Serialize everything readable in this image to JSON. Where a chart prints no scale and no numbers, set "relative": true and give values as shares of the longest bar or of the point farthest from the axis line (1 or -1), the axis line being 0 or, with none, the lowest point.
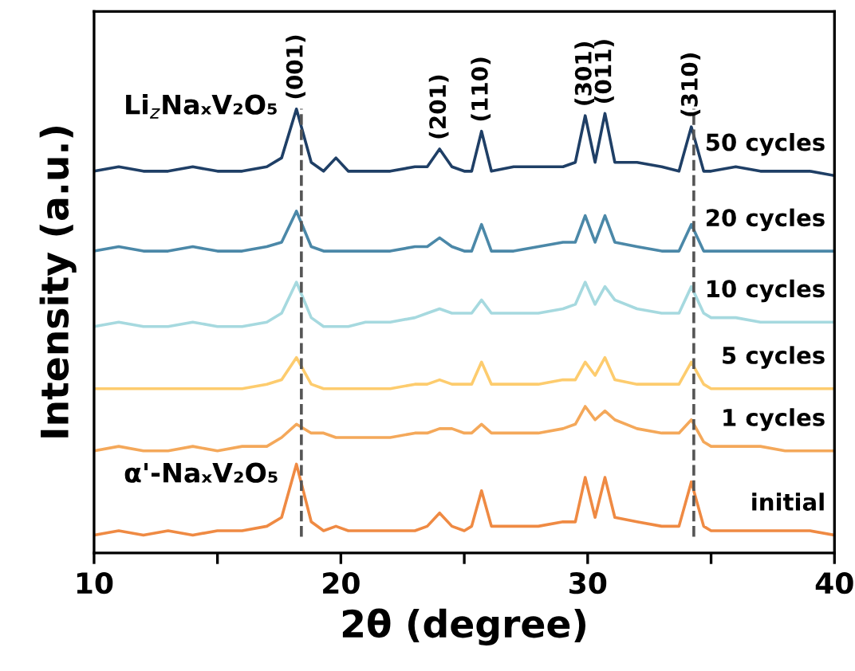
{
  "chart_data": {
    "type": "line",
    "relative": true,
    "xlabel": "2θ (degree)",
    "ylabel": "Intensity (a.u.)",
    "x": [
      10,
      11,
      12,
      13,
      14,
      15,
      16,
      17,
      17.6,
      18.2,
      18.8,
      19.3,
      19.8,
      20.3,
      21,
      22,
      23,
      23.5,
      24,
      24.5,
      25,
      25.3,
      25.7,
      26.1,
      27,
      28,
      29,
      29.5,
      29.9,
      30.3,
      30.7,
      31.1,
      32,
      33,
      33.7,
      34.2,
      34.7,
      35,
      36,
      37,
      38,
      39,
      40
    ],
    "xlim": [
      10,
      40
    ],
    "xticks": [
      10,
      {
        "value": 15,
        "label": null
      },
      20,
      {
        "value": 25,
        "label": null
      },
      30,
      {
        "value": 35,
        "label": null
      },
      40
    ],
    "tick_labels": "x",
    "grid": false,
    "legend": false,
    "line_style": "solid",
    "marker": "none",
    "series": [
      {
        "name": "50 cycles",
        "color": "#1f3f66",
        "values": [
          0.86,
          0.87,
          0.86,
          0.86,
          0.87,
          0.86,
          0.86,
          0.87,
          0.89,
          1.0,
          0.88,
          0.86,
          0.89,
          0.86,
          0.86,
          0.86,
          0.87,
          0.87,
          0.91,
          0.87,
          0.86,
          0.86,
          0.95,
          0.86,
          0.87,
          0.87,
          0.87,
          0.88,
          0.985,
          0.88,
          0.99,
          0.88,
          0.88,
          0.87,
          0.86,
          0.96,
          0.86,
          0.86,
          0.87,
          0.86,
          0.86,
          0.86,
          0.85
        ]
      },
      {
        "name": "20 cycles",
        "color": "#4b88a8",
        "values": [
          0.68,
          0.69,
          0.68,
          0.68,
          0.69,
          0.68,
          0.68,
          0.69,
          0.7,
          0.77,
          0.69,
          0.68,
          0.68,
          0.68,
          0.68,
          0.68,
          0.69,
          0.69,
          0.71,
          0.69,
          0.68,
          0.68,
          0.74,
          0.68,
          0.68,
          0.69,
          0.7,
          0.7,
          0.76,
          0.7,
          0.76,
          0.7,
          0.69,
          0.68,
          0.68,
          0.74,
          0.68,
          0.68,
          0.68,
          0.68,
          0.68,
          0.68,
          0.68
        ]
      },
      {
        "name": "10 cycles",
        "color": "#a6d9df",
        "values": [
          0.51,
          0.52,
          0.51,
          0.51,
          0.52,
          0.51,
          0.51,
          0.52,
          0.54,
          0.61,
          0.53,
          0.51,
          0.51,
          0.51,
          0.52,
          0.52,
          0.53,
          0.54,
          0.55,
          0.54,
          0.54,
          0.54,
          0.57,
          0.54,
          0.54,
          0.54,
          0.55,
          0.56,
          0.61,
          0.56,
          0.6,
          0.57,
          0.55,
          0.54,
          0.54,
          0.6,
          0.54,
          0.53,
          0.53,
          0.52,
          0.52,
          0.52,
          0.52
        ]
      },
      {
        "name": "5 cycles",
        "color": "#fdcc6e",
        "values": [
          0.37,
          0.37,
          0.37,
          0.37,
          0.37,
          0.37,
          0.37,
          0.38,
          0.39,
          0.44,
          0.38,
          0.37,
          0.37,
          0.37,
          0.37,
          0.37,
          0.38,
          0.38,
          0.39,
          0.38,
          0.38,
          0.38,
          0.43,
          0.38,
          0.38,
          0.38,
          0.39,
          0.39,
          0.43,
          0.4,
          0.44,
          0.39,
          0.38,
          0.38,
          0.38,
          0.43,
          0.38,
          0.37,
          0.37,
          0.37,
          0.37,
          0.37,
          0.37
        ]
      },
      {
        "name": "1 cycles",
        "color": "#f4a85a",
        "values": [
          0.23,
          0.24,
          0.23,
          0.23,
          0.24,
          0.23,
          0.24,
          0.24,
          0.26,
          0.29,
          0.27,
          0.27,
          0.26,
          0.26,
          0.26,
          0.26,
          0.27,
          0.27,
          0.28,
          0.28,
          0.27,
          0.27,
          0.29,
          0.27,
          0.27,
          0.27,
          0.28,
          0.29,
          0.33,
          0.3,
          0.32,
          0.3,
          0.28,
          0.27,
          0.27,
          0.3,
          0.25,
          0.24,
          0.24,
          0.24,
          0.23,
          0.23,
          0.23
        ]
      },
      {
        "name": "initial",
        "color": "#ef8a43",
        "values": [
          0.04,
          0.05,
          0.04,
          0.05,
          0.04,
          0.05,
          0.05,
          0.06,
          0.08,
          0.2,
          0.07,
          0.05,
          0.06,
          0.05,
          0.05,
          0.05,
          0.05,
          0.06,
          0.09,
          0.06,
          0.05,
          0.06,
          0.14,
          0.06,
          0.06,
          0.06,
          0.07,
          0.07,
          0.17,
          0.08,
          0.17,
          0.08,
          0.07,
          0.06,
          0.06,
          0.16,
          0.06,
          0.05,
          0.05,
          0.05,
          0.05,
          0.05,
          0.04
        ]
      }
    ],
    "ref_lines": [
      {
        "axis": "x",
        "value": 18.4,
        "color": "#555555",
        "line_style": "dashed"
      },
      {
        "axis": "x",
        "value": 34.3,
        "color": "#555555",
        "line_style": "dashed"
      }
    ],
    "annotations": [
      {
        "text": "(001)",
        "x": 18.2,
        "y": 1.0
      },
      {
        "text": "(201)",
        "x": 24.0,
        "y": 0.91
      },
      {
        "text": "(110)",
        "x": 25.7,
        "y": 0.95
      },
      {
        "text": "(301)",
        "x": 29.9,
        "y": 0.985
      },
      {
        "text": "(011)",
        "x": 30.7,
        "y": 0.99
      },
      {
        "text": "(310)",
        "x": 34.2,
        "y": 0.96
      },
      "Li$_{z}$NaₓV₂O₅",
      "α'-NaₓV₂O₅"
    ]
  }
}
